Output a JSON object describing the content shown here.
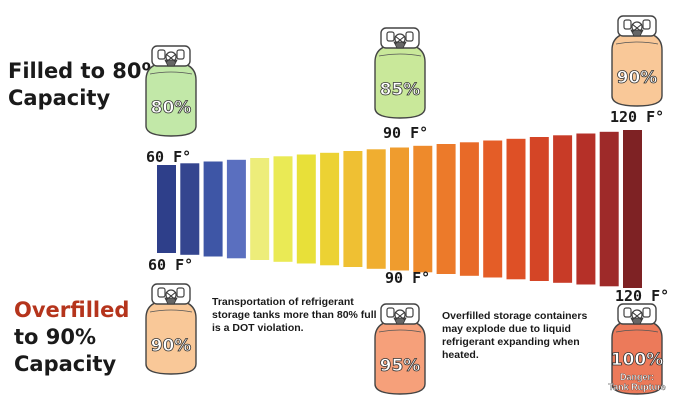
{
  "headings": {
    "filled_line1": "Filled to 80%",
    "filled_line2": "Capacity",
    "overfilled_line1": "Overfilled",
    "overfilled_line2": "to 90%",
    "overfilled_line3": "Capacity"
  },
  "temps": {
    "top_left": "60 F°",
    "top_mid": "90 F°",
    "top_right": "120 F°",
    "bottom_left": "60 F°",
    "bottom_mid": "90 F°",
    "bottom_right": "120 F°"
  },
  "notes": {
    "dot": "Transportation of refrigerant storage tanks more than 80% full is a DOT violation.",
    "explode": "Overfilled storage containers may explode due to liquid refrigerant expanding when heated."
  },
  "tanks": [
    {
      "id": "tank-80",
      "label": "80%",
      "color": "#c2e8a8"
    },
    {
      "id": "tank-85",
      "label": "85%",
      "color": "#c9e89a"
    },
    {
      "id": "tank-90-top",
      "label": "90%",
      "color": "#f9c898"
    },
    {
      "id": "tank-90-bottom",
      "label": "90%",
      "color": "#f9c898"
    },
    {
      "id": "tank-95",
      "label": "95%",
      "color": "#f6a07a"
    },
    {
      "id": "tank-100",
      "label": "100%",
      "color": "#ec7a5a",
      "danger_line1": "Danger:",
      "danger_line2": "Tank Rupture"
    }
  ],
  "bars": {
    "count": 21,
    "colors": [
      "#2e3f8a",
      "#34458f",
      "#3e56a6",
      "#5a6fbf",
      "#eded7a",
      "#eaea55",
      "#e8e039",
      "#ecd233",
      "#efc033",
      "#f0ae30",
      "#ef9c2e",
      "#ee8a2b",
      "#ec7a2a",
      "#e86a28",
      "#e45d27",
      "#de5026",
      "#d44526",
      "#c83b27",
      "#b53028",
      "#9e2a29",
      "#7e2224"
    ],
    "heights_pct": [
      0.0,
      0.05,
      0.1,
      0.15,
      0.2,
      0.25,
      0.3,
      0.35,
      0.4,
      0.45,
      0.5,
      0.55,
      0.6,
      0.65,
      0.7,
      0.75,
      0.8,
      0.85,
      0.9,
      0.95,
      1.0
    ]
  }
}
